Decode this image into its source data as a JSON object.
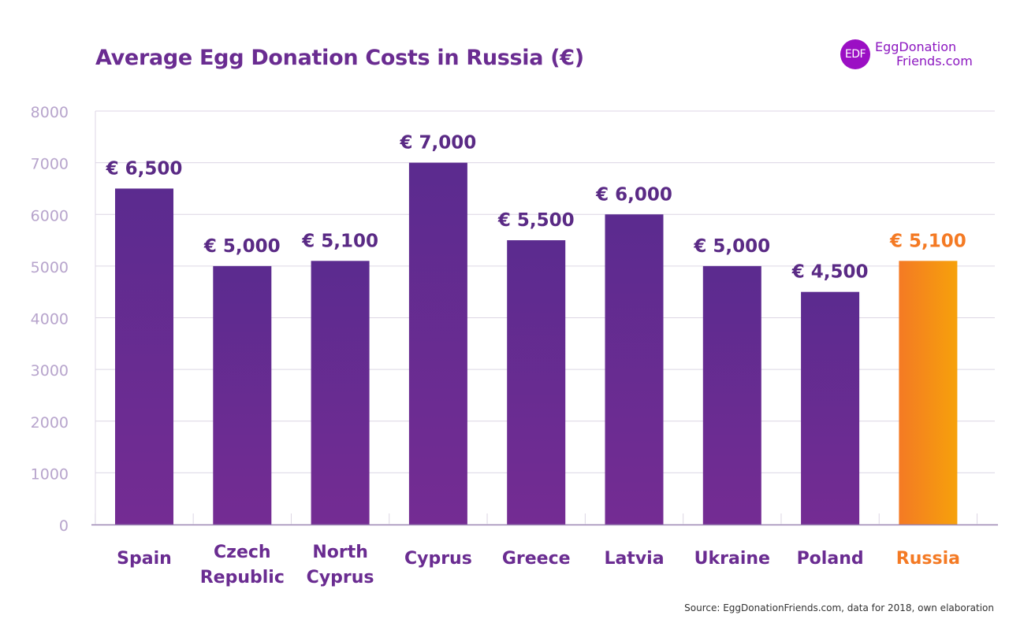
{
  "title": "Average Egg Donation Costs in Russia (€)",
  "logo": {
    "badge": "EDF",
    "line1": "EggDonation",
    "line2": "Friends.com"
  },
  "source": "Source: EggDonationFriends.com, data for 2018, own elaboration",
  "colors": {
    "title": "#6a2c91",
    "bar_top": "#5b2b8f",
    "bar_bottom": "#742c93",
    "highlight_left": "#f47a24",
    "highlight_right": "#f6a10b",
    "value_label": "#5a2a85",
    "highlight_label": "#f47a24",
    "tick_label": "#b7a4cc",
    "grid": "#dcd6e4",
    "axis": "#9b86b3"
  },
  "chart_data": {
    "type": "bar",
    "title": "Average Egg Donation Costs in Russia (€)",
    "categories": [
      [
        "Spain"
      ],
      [
        "Czech",
        "Republic"
      ],
      [
        "North",
        "Cyprus"
      ],
      [
        "Cyprus"
      ],
      [
        "Greece"
      ],
      [
        "Latvia"
      ],
      [
        "Ukraine"
      ],
      [
        "Poland"
      ],
      [
        "Russia"
      ]
    ],
    "values": [
      6500,
      5000,
      5100,
      7000,
      5500,
      6000,
      5000,
      4500,
      5100
    ],
    "value_labels": [
      "€ 6,500",
      "€ 5,000",
      "€ 5,100",
      "€ 7,000",
      "€ 5,500",
      "€ 6,000",
      "€ 5,000",
      "€ 4,500",
      "€ 5,100"
    ],
    "highlight_index": 8,
    "ylim": [
      0,
      8000
    ],
    "yticks": [
      0,
      1000,
      2000,
      3000,
      4000,
      5000,
      6000,
      7000,
      8000
    ],
    "xlabel": "",
    "ylabel": "",
    "grid": true,
    "legend": "none"
  }
}
